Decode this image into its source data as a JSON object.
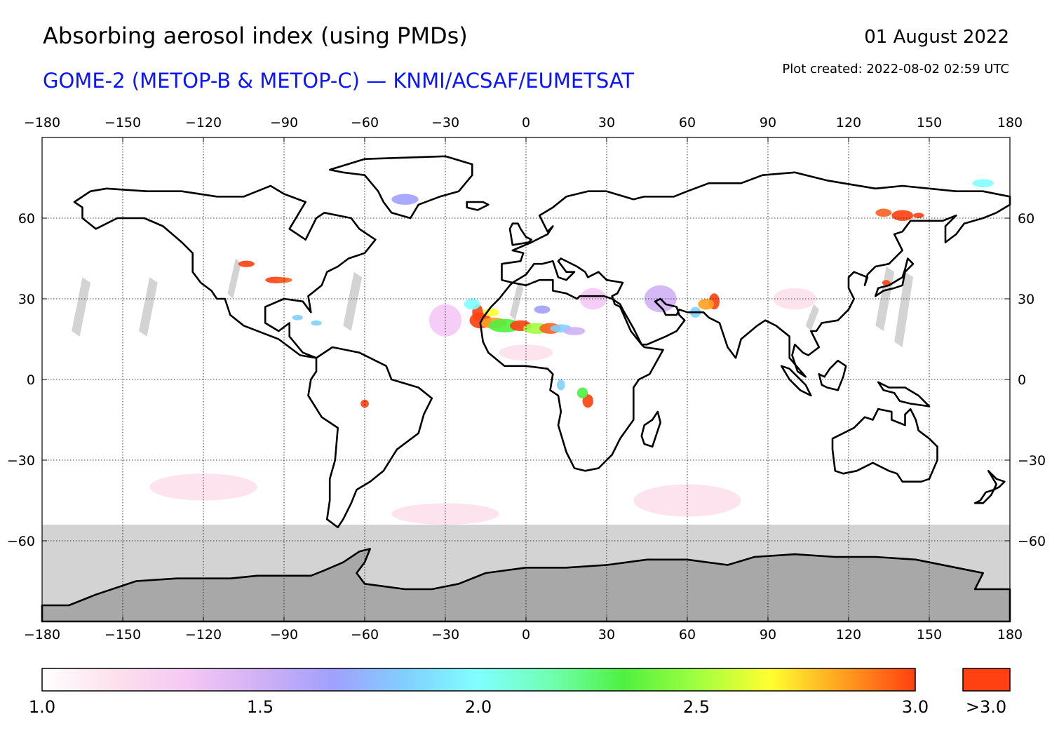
{
  "header": {
    "title": "Absorbing aerosol index (using PMDs)",
    "subtitle": "GOME-2 (METOP-B & METOP-C) — KNMI/ACSAF/EUMETSAT",
    "date": "01 August 2022",
    "plot_created": "Plot created: 2022-08-02 02:59 UTC"
  },
  "map": {
    "projection": "plate carree",
    "lon_range": [
      -180,
      180
    ],
    "lat_range": [
      -90,
      90
    ],
    "lon_ticks": [
      -180,
      -150,
      -120,
      -90,
      -60,
      -30,
      0,
      30,
      60,
      90,
      120,
      150,
      180
    ],
    "lat_ticks": [
      -60,
      -30,
      0,
      30,
      60
    ],
    "gridlines": "dotted",
    "no_data_color": "#d3d3d3",
    "antarctica_color": "#a8a8a8",
    "coastline_color": "#000000",
    "aerosol_hotspots": [
      {
        "region": "Western Sahara / Mauritania coast",
        "lon": -17,
        "lat": 24,
        "level": "high"
      },
      {
        "region": "Sahara (Mali/Niger)",
        "lon": -5,
        "lat": 20,
        "level": "high"
      },
      {
        "region": "Sahara (Niger/Chad)",
        "lon": 10,
        "lat": 19,
        "level": "medium"
      },
      {
        "region": "Central Africa fires",
        "lon": 23,
        "lat": -7,
        "level": "high"
      },
      {
        "region": "Pakistan / Thar",
        "lon": 70,
        "lat": 29,
        "level": "high"
      },
      {
        "region": "Eastern Siberia",
        "lon": 140,
        "lat": 61,
        "level": "high"
      },
      {
        "region": "US Northwest",
        "lon": -105,
        "lat": 43,
        "level": "high"
      },
      {
        "region": "US Great Lakes",
        "lon": -90,
        "lat": 37,
        "level": "high"
      }
    ]
  },
  "colorbar": {
    "stops": [
      "#ffffff",
      "#fde0ec",
      "#f5c8f5",
      "#d0b0f5",
      "#a0a0ff",
      "#80d0ff",
      "#80ffff",
      "#70ffb0",
      "#50f040",
      "#a0ff40",
      "#ffff30",
      "#ffa020",
      "#ff4010"
    ],
    "overflow_color": "#ff4010",
    "labels": [
      "1.0",
      "1.5",
      "2.0",
      "2.5",
      "3.0"
    ],
    "overflow_label": ">3.0"
  }
}
